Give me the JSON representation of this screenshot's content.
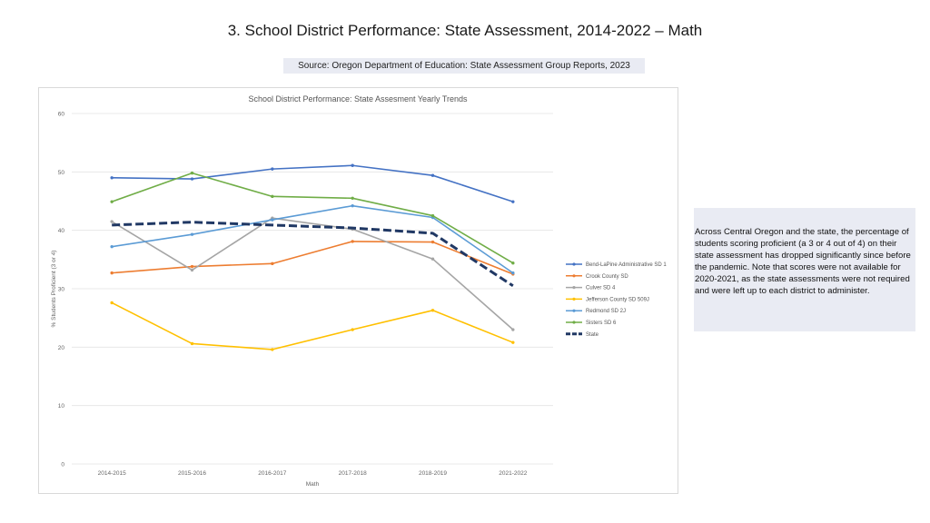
{
  "slide": {
    "title": "3. School District Performance: State Assessment, 2014-2022 – Math",
    "source": "Source: Oregon Department of Education: State Assessment Group Reports, 2023",
    "note": "Across Central Oregon and the state, the percentage of students scoring proficient (a 3 or 4 out of 4) on their state assessment has dropped significantly since before the pandemic. Note that scores were not available for 2020-2021, as the state assessments were not required and were left up to each district to administer."
  },
  "chart_data": {
    "type": "line",
    "title": "School District Performance: State Assesment Yearly Trends",
    "xlabel": "Math",
    "ylabel": "% Students Proficient (3 or 4)",
    "ylim": [
      0,
      60
    ],
    "yticks": [
      0,
      10,
      20,
      30,
      40,
      50,
      60
    ],
    "grid": true,
    "legend_position": "right",
    "categories": [
      "2014-2015",
      "2015-2016",
      "2016-2017",
      "2017-2018",
      "2018-2019",
      "2021-2022"
    ],
    "series": [
      {
        "name": "Bend-LaPine Administrative SD 1",
        "color": "#4472c4",
        "dashed": false,
        "values": [
          49.0,
          48.8,
          50.5,
          51.1,
          49.4,
          44.9
        ]
      },
      {
        "name": "Crook County SD",
        "color": "#ed7d31",
        "dashed": false,
        "values": [
          32.7,
          33.8,
          34.3,
          38.1,
          38.0,
          32.5
        ]
      },
      {
        "name": "Culver SD 4",
        "color": "#a5a5a5",
        "dashed": false,
        "values": [
          41.5,
          33.2,
          42.1,
          40.2,
          35.1,
          23.0
        ]
      },
      {
        "name": "Jefferson County SD 509J",
        "color": "#ffc000",
        "dashed": false,
        "values": [
          27.6,
          20.6,
          19.6,
          23.0,
          26.3,
          20.8
        ]
      },
      {
        "name": "Redmond SD 2J",
        "color": "#5b9bd5",
        "dashed": false,
        "values": [
          37.2,
          39.3,
          41.8,
          44.2,
          42.2,
          32.7
        ]
      },
      {
        "name": "Sisters SD 6",
        "color": "#70ad47",
        "dashed": false,
        "values": [
          44.9,
          49.8,
          45.8,
          45.5,
          42.5,
          34.4
        ]
      },
      {
        "name": "State",
        "color": "#203864",
        "dashed": true,
        "values": [
          40.9,
          41.4,
          40.9,
          40.4,
          39.5,
          30.5
        ]
      }
    ]
  }
}
